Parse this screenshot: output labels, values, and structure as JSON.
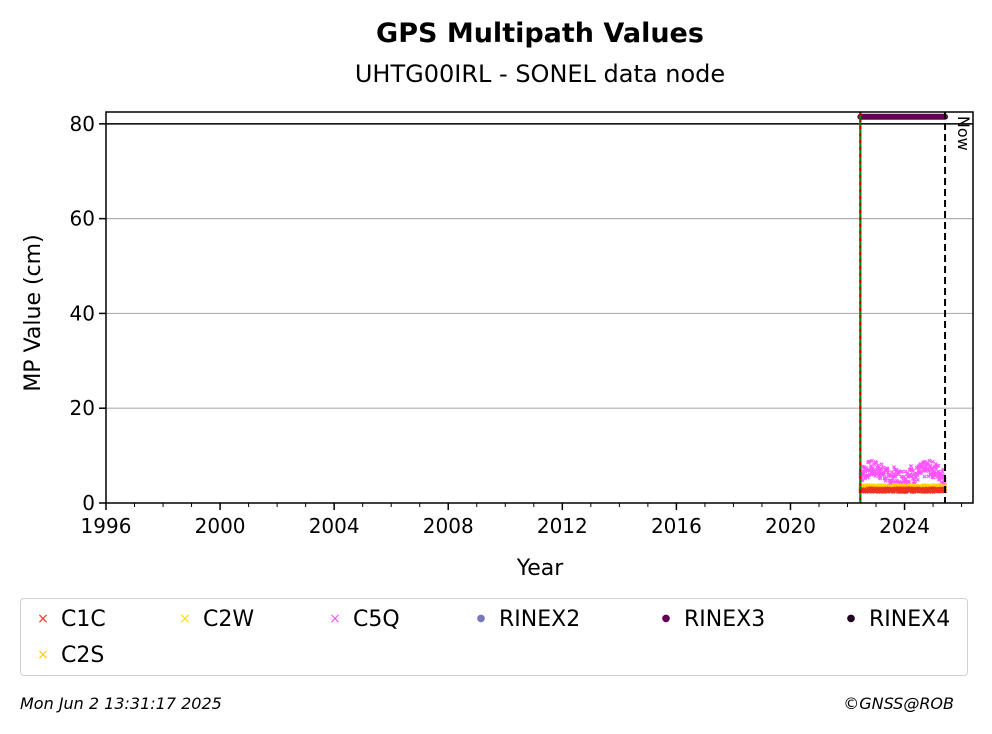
{
  "chart_data": {
    "type": "scatter",
    "title": "GPS Multipath Values",
    "subtitle": "UHTG00IRL - SONEL data node",
    "xlabel": "Year",
    "ylabel": "MP Value (cm)",
    "xlim": [
      1996,
      2026.4
    ],
    "ylim": [
      0,
      82.5
    ],
    "x_major_ticks": [
      1996,
      2000,
      2004,
      2008,
      2012,
      2016,
      2020,
      2024
    ],
    "x_tick_labels": [
      "1996",
      "2000",
      "2004",
      "2008",
      "2012",
      "2016",
      "2020",
      "2024"
    ],
    "y_major_ticks": [
      0,
      20,
      40,
      60,
      80
    ],
    "y_tick_labels": [
      "0",
      "20",
      "40",
      "60",
      "80"
    ],
    "grid": "horizontal",
    "reference_line_y": 80,
    "vertical_lines": [
      {
        "x": 2022.45,
        "style": "dashed",
        "colors": [
          "#008000",
          "#cc0000"
        ]
      },
      {
        "x": 2025.42,
        "style": "dashed",
        "colors": [
          "#000000"
        ],
        "label": "Now"
      }
    ],
    "data_span": [
      2022.45,
      2025.42
    ],
    "series": [
      {
        "name": "C1C",
        "color": "#ee3322",
        "marker": "x",
        "base": 2.6,
        "spread": 0.8
      },
      {
        "name": "C2W",
        "color": "#ffdd00",
        "marker": "x",
        "base": 3.3,
        "spread": 0.8
      },
      {
        "name": "C5Q",
        "color": "#ff55ff",
        "marker": "x",
        "base": 5.2,
        "spread": 3.5
      },
      {
        "name": "RINEX2",
        "color": "#7777bb",
        "marker": "dot"
      },
      {
        "name": "RINEX3",
        "color": "#660055",
        "marker": "dot",
        "y": 81.5,
        "range": [
          2022.45,
          2025.42
        ]
      },
      {
        "name": "RINEX4",
        "color": "#220022",
        "marker": "dot"
      },
      {
        "name": "C2S",
        "color": "#ffcc00",
        "marker": "x",
        "base": 3.0,
        "spread": 0.8
      }
    ]
  },
  "legend": {
    "markers": [
      "×",
      "×",
      "×",
      "●",
      "●",
      "●",
      "×"
    ]
  },
  "footer": {
    "timestamp": "Mon Jun  2 13:31:17 2025",
    "credit": "©GNSS@ROB"
  }
}
